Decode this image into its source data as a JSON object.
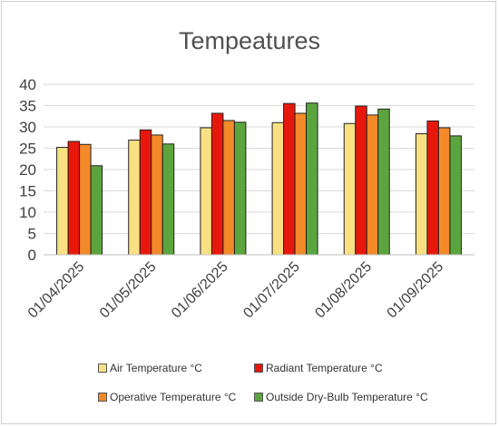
{
  "chart_data": {
    "type": "bar",
    "title": "Tempeatures",
    "xlabel": "",
    "ylabel": "",
    "categories": [
      "01/04/2025",
      "01/05/2025",
      "01/06/2025",
      "01/07/2025",
      "01/08/2025",
      "01/09/2025"
    ],
    "series": [
      {
        "name": "Air Temperature °C",
        "color": "#f9e183",
        "values": [
          25.2,
          26.9,
          29.8,
          31.0,
          30.8,
          28.4
        ]
      },
      {
        "name": "Radiant Temperature °C",
        "color": "#e8170c",
        "values": [
          26.6,
          29.3,
          33.2,
          35.5,
          34.9,
          31.4
        ]
      },
      {
        "name": "Operative Temperature °C",
        "color": "#f38a2a",
        "values": [
          25.9,
          28.1,
          31.5,
          33.2,
          32.8,
          29.8
        ]
      },
      {
        "name": "Outside Dry-Bulb Temperature °C",
        "color": "#5ca53e",
        "values": [
          20.9,
          26.0,
          31.1,
          35.6,
          34.2,
          27.9
        ]
      }
    ],
    "ylim": [
      0,
      40
    ],
    "yticks": [
      0,
      5,
      10,
      15,
      20,
      25,
      30,
      35,
      40
    ],
    "grid": true,
    "legend_position": "bottom"
  }
}
